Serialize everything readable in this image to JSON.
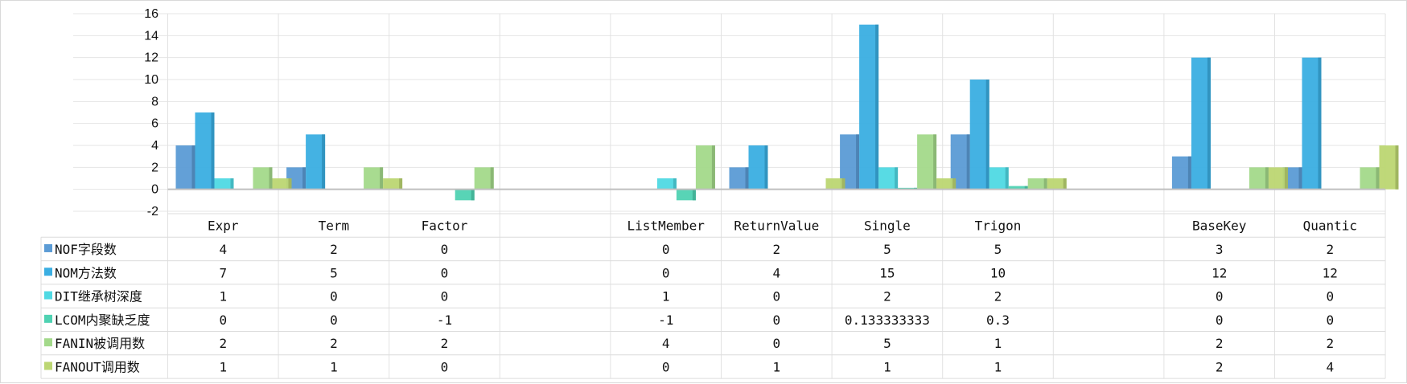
{
  "chart_data": {
    "type": "bar",
    "categories": [
      "Expr",
      "Term",
      "Factor",
      "",
      "ListMember",
      "ReturnValue",
      "Single",
      "Trigon",
      "",
      "BaseKey",
      "Quantic"
    ],
    "y_ticks": [
      "16",
      "14",
      "12",
      "10",
      "8",
      "6",
      "4",
      "2",
      "0",
      "-2"
    ],
    "ylim": [
      -2,
      16
    ],
    "grid": true,
    "legend_position": "data-table-left",
    "series": [
      {
        "name": "NOF字段数",
        "color": "#5b9bd5",
        "values": [
          4,
          2,
          0,
          null,
          0,
          2,
          5,
          5,
          null,
          3,
          2
        ],
        "labels": [
          "4",
          "2",
          "0",
          "",
          "0",
          "2",
          "5",
          "5",
          "",
          "3",
          "2"
        ]
      },
      {
        "name": "NOM方法数",
        "color": "#3aaee2",
        "values": [
          7,
          5,
          0,
          null,
          0,
          4,
          15,
          10,
          null,
          12,
          12
        ],
        "labels": [
          "7",
          "5",
          "0",
          "",
          "0",
          "4",
          "15",
          "10",
          "",
          "12",
          "12"
        ]
      },
      {
        "name": "DIT继承树深度",
        "color": "#4fd9e3",
        "values": [
          1,
          0,
          0,
          null,
          1,
          0,
          2,
          2,
          null,
          0,
          0
        ],
        "labels": [
          "1",
          "0",
          "0",
          "",
          "1",
          "0",
          "2",
          "2",
          "",
          "0",
          "0"
        ]
      },
      {
        "name": "LCOM内聚缺乏度",
        "color": "#4fd2b2",
        "values": [
          0,
          0,
          -1,
          null,
          -1,
          0,
          0.133333333,
          0.3,
          null,
          0,
          0
        ],
        "labels": [
          "0",
          "0",
          "-1",
          "",
          "-1",
          "0",
          "0.133333333",
          "0.3",
          "",
          "0",
          "0"
        ]
      },
      {
        "name": "FANIN被调用数",
        "color": "#a3d98a",
        "values": [
          2,
          2,
          2,
          null,
          4,
          0,
          5,
          1,
          null,
          2,
          2
        ],
        "labels": [
          "2",
          "2",
          "2",
          "",
          "4",
          "0",
          "5",
          "1",
          "",
          "2",
          "2"
        ]
      },
      {
        "name": "FANOUT调用数",
        "color": "#bcd672",
        "values": [
          1,
          1,
          0,
          null,
          0,
          1,
          1,
          1,
          null,
          2,
          4
        ],
        "labels": [
          "1",
          "1",
          "0",
          "",
          "0",
          "1",
          "1",
          "1",
          "",
          "2",
          "4"
        ]
      }
    ]
  }
}
